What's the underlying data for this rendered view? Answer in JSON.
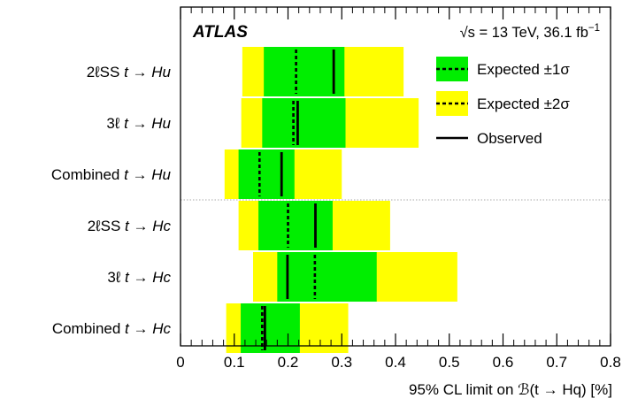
{
  "chart_data": {
    "type": "bar",
    "experiment": "ATLAS",
    "energy_label": "√s = 13 TeV, 36.1 fb",
    "energy_label_sup": "−1",
    "xlabel": "95% CL limit on ℬ(t → Hq) [%]",
    "xlim": [
      0,
      0.8
    ],
    "xticks": [
      0,
      0.1,
      0.2,
      0.3,
      0.4,
      0.5,
      0.6,
      0.7,
      0.8
    ],
    "xtick_labels": [
      "0",
      "0.1",
      "0.2",
      "0.3",
      "0.4",
      "0.5",
      "0.6",
      "0.7",
      "0.8"
    ],
    "categories": [
      {
        "pre": "2ℓSS ",
        "proc": "t → Hu",
        "expected": 0.215,
        "observed": 0.285,
        "band1": [
          0.155,
          0.305
        ],
        "band2": [
          0.115,
          0.415
        ]
      },
      {
        "pre": "3ℓ ",
        "proc": "t → Hu",
        "expected": 0.21,
        "observed": 0.218,
        "band1": [
          0.152,
          0.307
        ],
        "band2": [
          0.113,
          0.443
        ]
      },
      {
        "pre": "Combined ",
        "proc": "t → Hu",
        "expected": 0.147,
        "observed": 0.188,
        "band1": [
          0.108,
          0.212
        ],
        "band2": [
          0.082,
          0.3
        ]
      },
      {
        "pre": "2ℓSS ",
        "proc": "t → Hc",
        "expected": 0.2,
        "observed": 0.251,
        "band1": [
          0.145,
          0.283
        ],
        "band2": [
          0.108,
          0.39
        ]
      },
      {
        "pre": "3ℓ ",
        "proc": "t → Hc",
        "expected": 0.25,
        "observed": 0.199,
        "band1": [
          0.18,
          0.365
        ],
        "band2": [
          0.135,
          0.515
        ]
      },
      {
        "pre": "Combined ",
        "proc": "t → Hc",
        "expected": 0.152,
        "observed": 0.157,
        "band1": [
          0.112,
          0.222
        ],
        "band2": [
          0.085,
          0.312
        ]
      }
    ],
    "legend": [
      {
        "key": "band1",
        "label": "Expected ±1σ"
      },
      {
        "key": "band2",
        "label": "Expected ±2σ"
      },
      {
        "key": "observed",
        "label": "Observed"
      }
    ],
    "colors": {
      "band1": "#00ee00",
      "band2": "#ffff00",
      "line": "#000000",
      "separator": "#aaaaaa"
    }
  }
}
